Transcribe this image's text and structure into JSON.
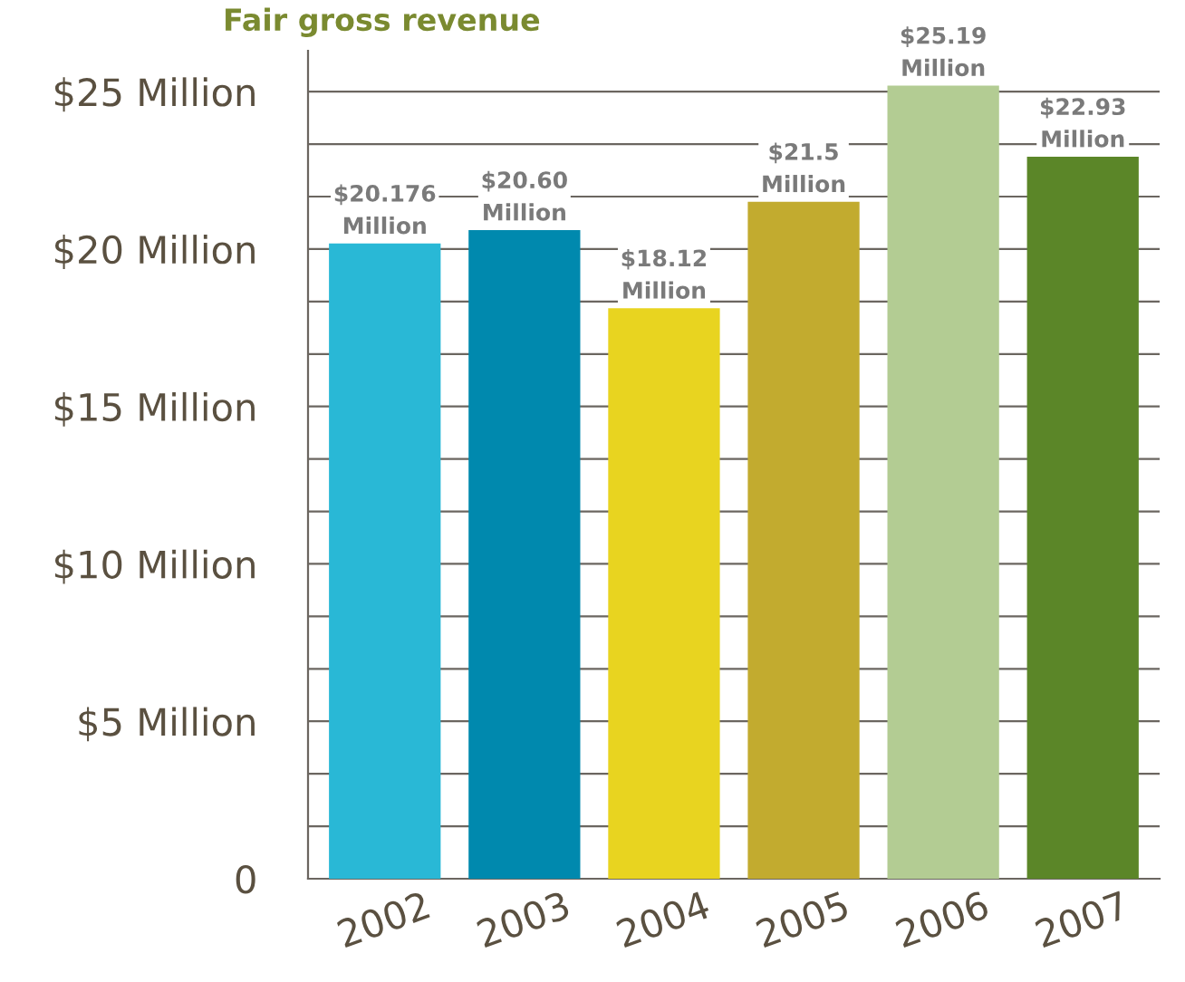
{
  "chart_data": {
    "type": "bar",
    "title": "Fair gross revenue",
    "categories": [
      "2002",
      "2003",
      "2004",
      "2005",
      "2006",
      "2007"
    ],
    "values": [
      20.176,
      20.6,
      18.12,
      21.5,
      25.19,
      22.93
    ],
    "colors": [
      "#29b8d6",
      "#0089ae",
      "#e8d420",
      "#c2ab2f",
      "#b3cc93",
      "#5b8628"
    ],
    "value_labels": [
      "$20.176\nMillion",
      "$20.60\nMillion",
      "$18.12\nMillion",
      "$21.5\nMillion",
      "$25.19\nMillion",
      "$22.93\nMillion"
    ],
    "ylim": [
      0,
      26.3
    ],
    "yticks": [
      {
        "value": 0,
        "label": "0"
      },
      {
        "value": 1.667,
        "label": null
      },
      {
        "value": 3.333,
        "label": null
      },
      {
        "value": 5,
        "label": "$5 Million"
      },
      {
        "value": 6.667,
        "label": null
      },
      {
        "value": 8.333,
        "label": null
      },
      {
        "value": 10,
        "label": "$10 Million"
      },
      {
        "value": 11.667,
        "label": null
      },
      {
        "value": 13.333,
        "label": null
      },
      {
        "value": 15,
        "label": "$15 Million"
      },
      {
        "value": 16.667,
        "label": null
      },
      {
        "value": 18.333,
        "label": null
      },
      {
        "value": 20,
        "label": "$20 Million"
      },
      {
        "value": 21.667,
        "label": null
      },
      {
        "value": 23.333,
        "label": null
      },
      {
        "value": 25,
        "label": "$25 Million"
      }
    ],
    "grid": "y"
  }
}
